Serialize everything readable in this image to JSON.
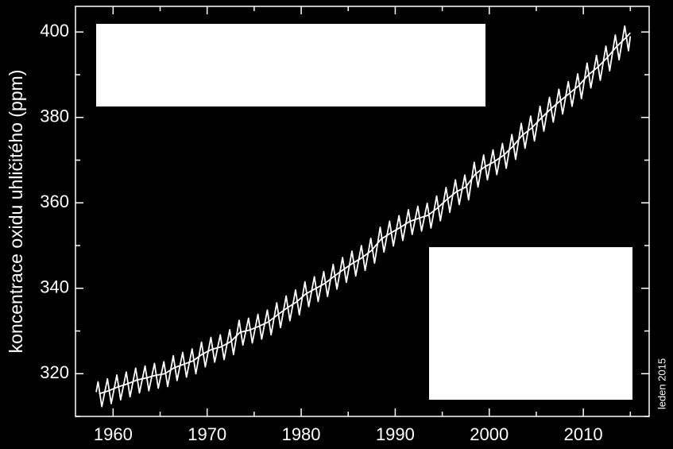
{
  "chart_data": {
    "type": "line",
    "y_label": "koncentrace oxidu uhličitého (ppm)",
    "annotation": "leden 2015",
    "xlim": [
      1956,
      2017
    ],
    "ylim": [
      310,
      406
    ],
    "xticks": [
      1960,
      1970,
      1980,
      1990,
      2000,
      2010
    ],
    "xminor": [
      1965,
      1975,
      1985,
      1995,
      2005,
      2015
    ],
    "yticks": [
      320,
      340,
      360,
      380,
      400
    ],
    "yminor": [
      310,
      330,
      350,
      370,
      390
    ],
    "series": [
      {
        "color": "#ffffff",
        "x": [
          1958.2,
          1958.4,
          1958.8,
          1959.4,
          1959.8,
          1960.4,
          1960.8,
          1961.4,
          1961.8,
          1962.4,
          1962.8,
          1963.4,
          1963.8,
          1964.4,
          1964.8,
          1965.4,
          1965.8,
          1966.4,
          1966.8,
          1967.4,
          1967.8,
          1968.4,
          1968.8,
          1969.4,
          1969.8,
          1970.4,
          1970.8,
          1971.4,
          1971.8,
          1972.4,
          1972.8,
          1973.4,
          1973.8,
          1974.4,
          1974.8,
          1975.4,
          1975.8,
          1976.4,
          1976.8,
          1977.4,
          1977.8,
          1978.4,
          1978.8,
          1979.4,
          1979.8,
          1980.4,
          1980.8,
          1981.4,
          1981.8,
          1982.4,
          1982.8,
          1983.4,
          1983.8,
          1984.4,
          1984.8,
          1985.4,
          1985.8,
          1986.4,
          1986.8,
          1987.4,
          1987.8,
          1988.4,
          1988.8,
          1989.4,
          1989.8,
          1990.4,
          1990.8,
          1991.4,
          1991.8,
          1992.4,
          1992.8,
          1993.4,
          1993.8,
          1994.4,
          1994.8,
          1995.4,
          1995.8,
          1996.4,
          1996.8,
          1997.4,
          1997.8,
          1998.4,
          1998.8,
          1999.4,
          1999.8,
          2000.4,
          2000.8,
          2001.4,
          2001.8,
          2002.4,
          2002.8,
          2003.4,
          2003.8,
          2004.4,
          2004.8,
          2005.4,
          2005.8,
          2006.4,
          2006.8,
          2007.4,
          2007.8,
          2008.4,
          2008.8,
          2009.4,
          2009.8,
          2010.4,
          2010.8,
          2011.4,
          2011.8,
          2012.4,
          2012.8,
          2013.4,
          2013.8,
          2014.4,
          2014.8,
          2015.0
        ],
        "values": [
          315.7,
          318.1,
          312.3,
          318.8,
          313.0,
          319.7,
          313.9,
          320.4,
          314.6,
          321.3,
          315.5,
          321.8,
          316.0,
          322.4,
          316.6,
          322.8,
          317.0,
          324.2,
          318.4,
          325.0,
          319.2,
          325.8,
          320.0,
          327.4,
          321.6,
          328.5,
          322.7,
          329.1,
          323.3,
          330.3,
          324.5,
          332.5,
          326.7,
          333.0,
          327.2,
          333.9,
          328.1,
          334.9,
          329.1,
          336.6,
          330.8,
          338.2,
          332.4,
          339.6,
          333.8,
          341.5,
          335.7,
          342.7,
          336.9,
          343.9,
          338.1,
          345.6,
          339.8,
          347.2,
          341.4,
          348.7,
          342.9,
          350.0,
          344.2,
          351.7,
          345.9,
          354.3,
          348.5,
          355.7,
          349.9,
          357.0,
          351.2,
          358.4,
          352.6,
          359.2,
          353.4,
          359.9,
          354.1,
          361.6,
          355.8,
          363.6,
          357.8,
          365.4,
          359.6,
          366.5,
          360.7,
          369.5,
          363.7,
          371.2,
          365.4,
          372.4,
          366.6,
          373.9,
          368.1,
          376.0,
          370.2,
          378.6,
          372.8,
          380.3,
          374.5,
          382.6,
          376.8,
          384.7,
          378.9,
          386.6,
          380.8,
          388.4,
          382.6,
          390.2,
          384.4,
          392.7,
          386.9,
          394.5,
          388.7,
          396.7,
          390.9,
          399.3,
          393.5,
          401.4,
          395.6,
          399.0
        ]
      },
      {
        "color": "#ffffff",
        "x": [
          1958.5,
          1959.5,
          1960.5,
          1961.5,
          1962.5,
          1963.5,
          1964.5,
          1965.5,
          1966.5,
          1967.5,
          1968.5,
          1969.5,
          1970.5,
          1971.5,
          1972.5,
          1973.5,
          1974.5,
          1975.5,
          1976.5,
          1977.5,
          1978.5,
          1979.5,
          1980.5,
          1981.5,
          1982.5,
          1983.5,
          1984.5,
          1985.5,
          1986.5,
          1987.5,
          1988.5,
          1989.5,
          1990.5,
          1991.5,
          1992.5,
          1993.5,
          1994.5,
          1995.5,
          1996.5,
          1997.5,
          1998.5,
          1999.5,
          2000.5,
          2001.5,
          2002.5,
          2003.5,
          2004.5,
          2005.5,
          2006.5,
          2007.5,
          2008.5,
          2009.5,
          2010.5,
          2011.5,
          2012.5,
          2013.5,
          2014.5,
          2015.0
        ],
        "values": [
          315.3,
          316.0,
          316.9,
          317.6,
          318.5,
          319.0,
          319.6,
          320.0,
          321.4,
          322.2,
          323.0,
          324.6,
          325.7,
          326.3,
          327.5,
          329.7,
          330.2,
          331.1,
          332.1,
          333.8,
          335.4,
          336.8,
          338.7,
          339.9,
          341.1,
          342.8,
          344.4,
          345.9,
          347.2,
          348.9,
          351.5,
          352.9,
          354.2,
          355.6,
          356.4,
          357.1,
          358.8,
          360.8,
          362.6,
          363.7,
          366.7,
          368.4,
          369.6,
          371.1,
          373.2,
          375.8,
          377.5,
          379.8,
          381.9,
          383.8,
          385.6,
          387.4,
          389.9,
          391.7,
          393.9,
          396.5,
          398.6,
          399.8
        ]
      }
    ]
  }
}
